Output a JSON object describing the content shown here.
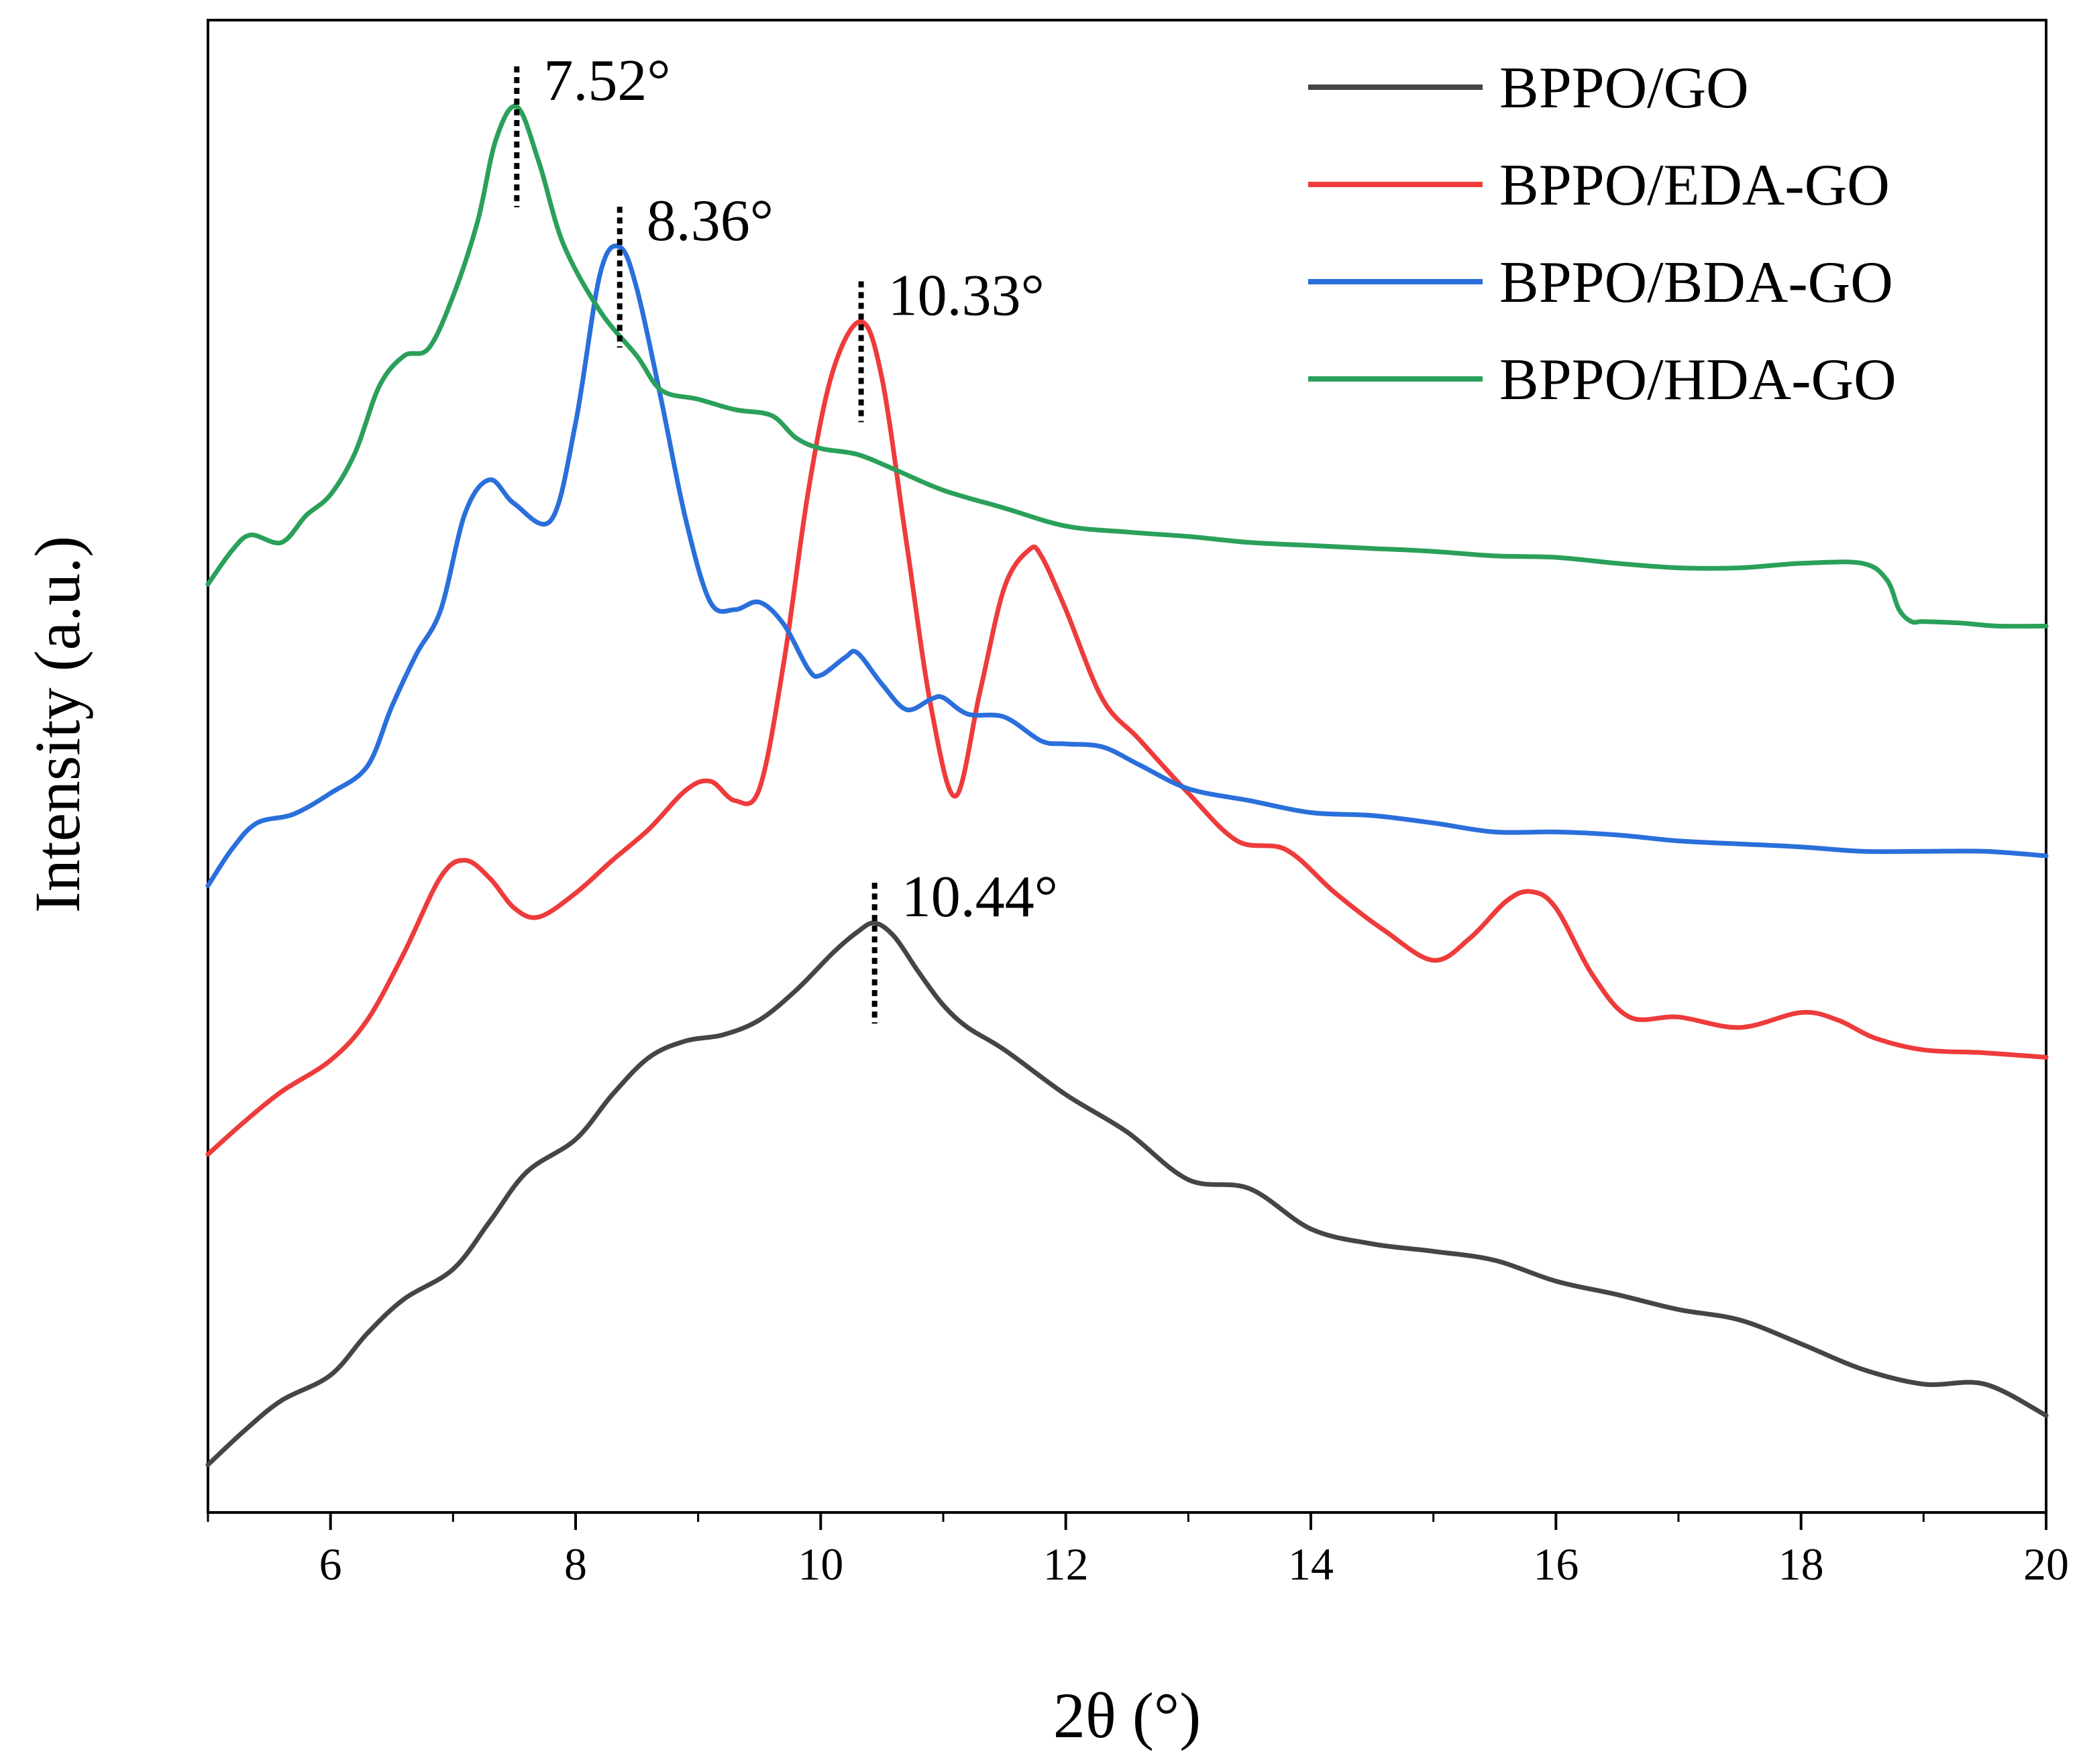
{
  "chart_data": {
    "type": "line",
    "title": "",
    "xlabel": "2θ (°)",
    "ylabel": "Intensity (a.u.)",
    "xlim": [
      5,
      20
    ],
    "ylim": [
      0,
      100
    ],
    "xticks": [
      6,
      8,
      10,
      12,
      14,
      16,
      18,
      20
    ],
    "xtick_labels": [
      "6",
      "8",
      "10",
      "12",
      "14",
      "16",
      "18",
      "20"
    ],
    "y_ticks_shown": false,
    "grid": false,
    "legend": {
      "placement": "top-right"
    },
    "series": [
      {
        "name": "BPPO/GO",
        "color": "#454545",
        "x": [
          5.0,
          5.3,
          5.6,
          6.0,
          6.3,
          6.6,
          7.0,
          7.3,
          7.6,
          8.0,
          8.3,
          8.6,
          8.9,
          9.2,
          9.5,
          9.8,
          10.1,
          10.3,
          10.44,
          10.6,
          10.8,
          11.0,
          11.2,
          11.5,
          12.0,
          12.5,
          13.0,
          13.5,
          14.0,
          14.5,
          15.0,
          15.5,
          16.0,
          16.5,
          17.0,
          17.5,
          18.0,
          18.5,
          19.0,
          19.5,
          20.0
        ],
        "y": [
          3.2,
          5.5,
          7.5,
          9.2,
          12.0,
          14.3,
          16.3,
          19.5,
          22.8,
          25.0,
          28.0,
          30.5,
          31.6,
          32.0,
          33.0,
          35.0,
          37.5,
          38.9,
          39.5,
          38.6,
          36.2,
          34.0,
          32.5,
          31.0,
          28.0,
          25.5,
          22.3,
          21.7,
          19.0,
          18.0,
          17.5,
          16.9,
          15.5,
          14.6,
          13.6,
          12.9,
          11.3,
          9.6,
          8.6,
          8.6,
          6.5
        ]
      },
      {
        "name": "BPPO/EDA-GO",
        "color": "#ee3b3b",
        "x": [
          5.0,
          5.3,
          5.6,
          6.0,
          6.3,
          6.6,
          6.9,
          7.1,
          7.3,
          7.5,
          7.7,
          8.0,
          8.3,
          8.6,
          8.9,
          9.1,
          9.3,
          9.5,
          9.7,
          9.9,
          10.1,
          10.33,
          10.5,
          10.7,
          10.9,
          11.1,
          11.3,
          11.5,
          11.7,
          11.8,
          12.0,
          12.3,
          12.6,
          13.0,
          13.4,
          13.8,
          14.2,
          14.6,
          15.0,
          15.3,
          15.6,
          15.8,
          16.0,
          16.3,
          16.6,
          17.0,
          17.5,
          18.0,
          18.3,
          18.6,
          19.0,
          19.5,
          20.0
        ],
        "y": [
          24.0,
          26.2,
          28.2,
          30.3,
          33.0,
          37.5,
          42.6,
          43.7,
          42.5,
          40.5,
          39.9,
          41.5,
          43.7,
          45.8,
          48.4,
          49.0,
          47.7,
          48.5,
          57.0,
          68.5,
          76.5,
          79.8,
          76.0,
          65.0,
          54.0,
          48.0,
          55.0,
          62.0,
          64.5,
          64.1,
          60.5,
          54.5,
          51.8,
          48.2,
          45.0,
          44.4,
          41.5,
          39.0,
          37.0,
          38.5,
          41.0,
          41.6,
          40.5,
          36.0,
          33.2,
          33.2,
          32.5,
          33.5,
          33.0,
          31.8,
          31.0,
          30.8,
          30.5
        ]
      },
      {
        "name": "BPPO/BDA-GO",
        "color": "#2a6fdb",
        "x": [
          5.0,
          5.2,
          5.4,
          5.7,
          6.0,
          6.3,
          6.5,
          6.7,
          6.9,
          7.1,
          7.3,
          7.5,
          7.8,
          8.0,
          8.2,
          8.36,
          8.5,
          8.7,
          8.9,
          9.1,
          9.3,
          9.5,
          9.7,
          9.9,
          10.0,
          10.2,
          10.3,
          10.5,
          10.7,
          10.9,
          11.0,
          11.2,
          11.5,
          11.8,
          12.0,
          12.3,
          12.6,
          13.0,
          13.5,
          14.0,
          14.5,
          15.0,
          15.5,
          16.0,
          16.5,
          17.0,
          17.5,
          18.0,
          18.5,
          19.0,
          19.5,
          20.0
        ],
        "y": [
          42.0,
          44.5,
          46.2,
          46.8,
          48.2,
          50.0,
          54.0,
          57.5,
          60.5,
          67.0,
          69.2,
          67.6,
          66.5,
          73.0,
          83.0,
          84.8,
          82.0,
          74.5,
          66.5,
          61.0,
          60.5,
          61.0,
          59.5,
          56.5,
          56.1,
          57.3,
          57.6,
          55.5,
          53.8,
          54.5,
          54.6,
          53.5,
          53.3,
          51.7,
          51.5,
          51.3,
          50.1,
          48.5,
          47.7,
          46.9,
          46.7,
          46.2,
          45.6,
          45.6,
          45.4,
          45.0,
          44.8,
          44.6,
          44.3,
          44.3,
          44.3,
          44.0
        ]
      },
      {
        "name": "BPPO/HDA-GO",
        "color": "#2aa05a",
        "x": [
          5.0,
          5.2,
          5.35,
          5.6,
          5.8,
          6.0,
          6.2,
          6.4,
          6.6,
          6.8,
          7.0,
          7.2,
          7.35,
          7.52,
          7.7,
          7.9,
          8.2,
          8.5,
          8.7,
          9.0,
          9.3,
          9.6,
          9.8,
          10.0,
          10.3,
          10.6,
          11.0,
          11.5,
          12.0,
          12.5,
          13.0,
          13.5,
          14.0,
          14.5,
          15.0,
          15.5,
          16.0,
          16.5,
          17.0,
          17.5,
          18.0,
          18.5,
          18.7,
          18.8,
          18.9,
          19.0,
          19.3,
          19.6,
          20.0
        ],
        "y": [
          62.2,
          64.5,
          65.5,
          65.0,
          66.8,
          68.2,
          71.0,
          75.5,
          77.5,
          78.0,
          81.5,
          86.5,
          92.0,
          94.2,
          90.5,
          85.0,
          80.5,
          77.5,
          75.2,
          74.6,
          73.9,
          73.5,
          72.0,
          71.3,
          70.9,
          69.9,
          68.5,
          67.3,
          66.1,
          65.7,
          65.4,
          65.0,
          64.8,
          64.6,
          64.4,
          64.1,
          64.0,
          63.6,
          63.3,
          63.3,
          63.6,
          63.6,
          62.5,
          60.5,
          59.7,
          59.7,
          59.6,
          59.4,
          59.4
        ]
      }
    ],
    "annotations": [
      {
        "x": 7.52,
        "label": "7.52°",
        "series": "BPPO/HDA-GO"
      },
      {
        "x": 8.36,
        "label": "8.36°",
        "series": "BPPO/BDA-GO"
      },
      {
        "x": 10.33,
        "label": "10.33°",
        "series": "BPPO/EDA-GO"
      },
      {
        "x": 10.44,
        "label": "10.44°",
        "series": "BPPO/GO"
      }
    ]
  }
}
